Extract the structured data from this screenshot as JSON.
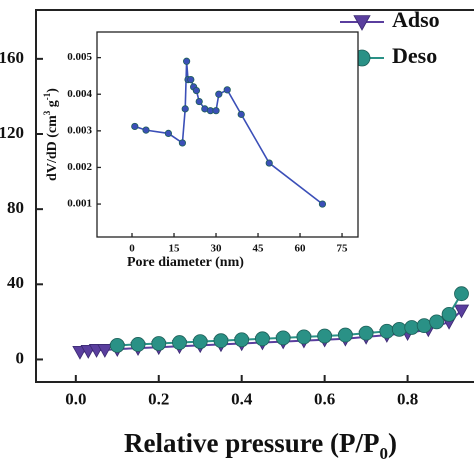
{
  "chart_data": [
    {
      "type": "line",
      "x_label": [
        "Relative pressure (P/P",
        "0",
        ")"
      ],
      "xlim": [
        -0.096,
        1.1
      ],
      "ylim": [
        -12,
        186
      ],
      "xticks": [
        {
          "value": 0,
          "label": "0.0"
        },
        {
          "value": 0.2,
          "label": "0.2"
        },
        {
          "value": 0.4,
          "label": "0.4"
        },
        {
          "value": 0.6,
          "label": "0.6"
        },
        {
          "value": 0.8,
          "label": "0.8"
        }
      ],
      "yticks": [
        0,
        40,
        80,
        120,
        160
      ],
      "series": [
        {
          "name": "Adso",
          "color": "#5a3e9e",
          "marker": "triangle",
          "x": [
            0.01,
            0.03,
            0.05,
            0.07,
            0.1,
            0.15,
            0.2,
            0.25,
            0.3,
            0.35,
            0.4,
            0.45,
            0.5,
            0.55,
            0.6,
            0.65,
            0.7,
            0.75,
            0.8,
            0.85,
            0.9,
            0.93
          ],
          "values": [
            4,
            4.5,
            5,
            5,
            5.5,
            6,
            6.5,
            7,
            7.5,
            8,
            8.5,
            9,
            9.5,
            10,
            10.5,
            11,
            12,
            13,
            14,
            16,
            20,
            26
          ]
        },
        {
          "name": "Deso",
          "color": "#2a9186",
          "marker": "circle",
          "x": [
            0.1,
            0.15,
            0.2,
            0.25,
            0.3,
            0.35,
            0.4,
            0.45,
            0.5,
            0.55,
            0.6,
            0.65,
            0.7,
            0.75,
            0.78,
            0.81,
            0.84,
            0.87,
            0.9,
            0.93
          ],
          "values": [
            7.5,
            8,
            8.5,
            9,
            9.5,
            10,
            10.5,
            11,
            11.5,
            12,
            12.5,
            13,
            14,
            15,
            16,
            17,
            18,
            20,
            24,
            35
          ]
        }
      ]
    },
    {
      "type": "line",
      "x_label": [
        "Pore diameter (nm)"
      ],
      "y_label": [
        "dV/dD (cm",
        "3",
        " g",
        "-1",
        ")"
      ],
      "xlim": [
        -12.5,
        80.7
      ],
      "ylim": [
        0.0001,
        0.0057
      ],
      "xticks": [
        0,
        15,
        30,
        45,
        60,
        75
      ],
      "yticks": [
        0.001,
        0.002,
        0.003,
        0.004,
        0.005
      ],
      "series": [
        {
          "color": "#3b4fb8",
          "marker": "circle",
          "x": [
            1,
            5,
            13,
            18,
            19,
            19.5,
            20,
            21,
            22,
            23,
            24,
            26,
            28,
            30,
            31,
            34,
            39,
            49,
            68
          ],
          "values": [
            0.00312,
            0.00302,
            0.00293,
            0.00267,
            0.0036,
            0.0049,
            0.0044,
            0.0044,
            0.0042,
            0.0041,
            0.0038,
            0.0036,
            0.00355,
            0.00355,
            0.004,
            0.00412,
            0.00345,
            0.00212,
            0.001
          ]
        }
      ]
    }
  ]
}
